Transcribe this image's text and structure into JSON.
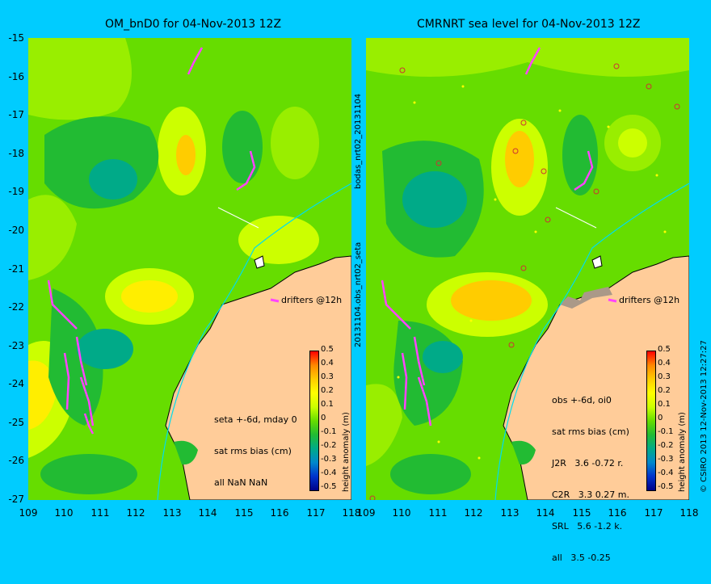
{
  "left_panel": {
    "title": "OM_bnD0 for 04-Nov-2013 12Z",
    "annotation": [
      "seta +-6d, mday 0",
      "sat rms bias (cm)",
      "all NaN NaN"
    ],
    "drifters_label": "drifters @12h"
  },
  "right_panel": {
    "title": "CMRNRT sea level  for 04-Nov-2013 12Z",
    "annotation": [
      "obs +-6d, oi0",
      "sat rms bias (cm)",
      "J2R   3.6 -0.72 r.",
      "C2R   3.3 0.27 m.",
      "SRL   5.6 -1.2 k.",
      "all   3.5 -0.25"
    ],
    "drifters_label": "drifters @12h"
  },
  "axes": {
    "lat_ticks": [
      "-15",
      "-16",
      "-17",
      "-18",
      "-19",
      "-20",
      "-21",
      "-22",
      "-23",
      "-24",
      "-25",
      "-26",
      "-27"
    ],
    "lon_ticks": [
      "109",
      "110",
      "111",
      "112",
      "113",
      "114",
      "115",
      "116",
      "117",
      "118"
    ],
    "lat_range": [
      -27,
      -15
    ],
    "lon_range": [
      109,
      118
    ]
  },
  "colorbar": {
    "label": "height anomaly (m)",
    "ticks": [
      "0.5",
      "0.4",
      "0.3",
      "0.2",
      "0.1",
      "0",
      "-0.1",
      "-0.2",
      "-0.3",
      "-0.4",
      "-0.5"
    ],
    "range": [
      -0.5,
      0.5
    ],
    "colors": [
      "#ff0000",
      "#ff8800",
      "#ffcc00",
      "#ffff00",
      "#ccff00",
      "#66dd00",
      "#22bb33",
      "#00aa88",
      "#0088cc",
      "#0033cc",
      "#000088"
    ]
  },
  "side_labels": {
    "middle_top": "bodas_nrt02_20131104",
    "middle_bottom": "20131104.obs_nrt02_seta",
    "right_credit": "© CSIRO 2013   12-Nov-2013 12:27:27"
  },
  "colors": {
    "background": "#00ccff",
    "land": "#ffcc99",
    "sea_base": "#66dd00",
    "drifter": "#ff44ff"
  }
}
